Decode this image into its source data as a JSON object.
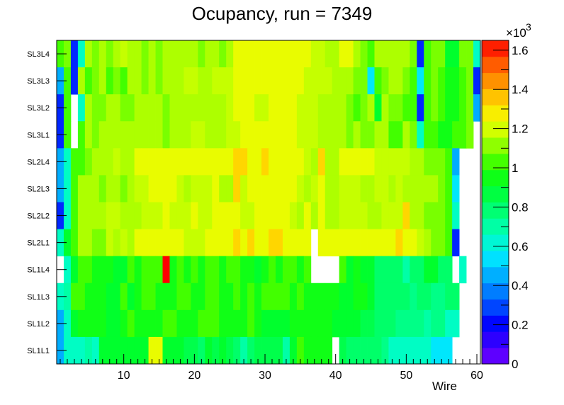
{
  "title": "Ocupancy, run = 7349",
  "chart_data": {
    "type": "heatmap",
    "title": "Ocupancy, run = 7349",
    "xlabel": "Wire",
    "ylabel": "",
    "x_ticks": [
      "10",
      "20",
      "30",
      "40",
      "50",
      "60"
    ],
    "x_range": [
      0.5,
      60.5
    ],
    "rows": [
      "SL3L4",
      "SL3L3",
      "SL3L2",
      "SL3L1",
      "SL2L4",
      "SL2L3",
      "SL2L2",
      "SL2L1",
      "SL1L4",
      "SL1L3",
      "SL1L2",
      "SL1L1"
    ],
    "colorbar": {
      "multiplier": "×10",
      "exponent": "3",
      "ticks": [
        "0",
        "0.2",
        "0.4",
        "0.6",
        "0.8",
        "1",
        "1.2",
        "1.4",
        "1.6"
      ],
      "range": [
        0,
        1650
      ]
    },
    "values_scale": "counts",
    "row_values": {
      "SL3L4": [
        1030,
        1090,
        250,
        650,
        1150,
        1090,
        1150,
        1090,
        1150,
        1180,
        1150,
        1150,
        1090,
        1150,
        1090,
        1150,
        1150,
        1150,
        1150,
        1150,
        1090,
        1150,
        1150,
        1090,
        1150,
        1230,
        1230,
        1230,
        1230,
        1230,
        1230,
        1230,
        1230,
        1230,
        1230,
        1230,
        1180,
        1180,
        1150,
        1150,
        1230,
        1230,
        1150,
        1090,
        1030,
        1150,
        1150,
        1150,
        1150,
        1150,
        1090,
        250,
        1030,
        1090,
        1090,
        900,
        900,
        1090,
        1090,
        650
      ],
      "SL3L3": [
        450,
        1030,
        250,
        1150,
        1030,
        1090,
        1150,
        1030,
        1090,
        1030,
        1150,
        1150,
        1090,
        1150,
        1090,
        1150,
        1150,
        1150,
        1180,
        1180,
        1150,
        1150,
        1180,
        1180,
        1180,
        1230,
        1230,
        1230,
        1230,
        1230,
        1230,
        1230,
        1230,
        1230,
        1230,
        1180,
        1180,
        1180,
        1180,
        1150,
        1150,
        1150,
        1090,
        1090,
        550,
        1030,
        1090,
        1150,
        1150,
        1090,
        1030,
        550,
        1030,
        1090,
        1030,
        950,
        950,
        1030,
        1090,
        250
      ],
      "SL3L2": [
        250,
        1030,
        null,
        650,
        1150,
        1090,
        1090,
        1150,
        1150,
        1090,
        1090,
        1150,
        1150,
        1150,
        1150,
        1090,
        1150,
        1150,
        1150,
        1150,
        1150,
        1150,
        1150,
        1150,
        1180,
        1230,
        1230,
        1230,
        1180,
        1180,
        1230,
        1230,
        1230,
        1230,
        1180,
        1180,
        1180,
        1150,
        1150,
        1150,
        1150,
        1090,
        1030,
        1090,
        1150,
        900,
        1150,
        1090,
        1090,
        1030,
        1030,
        250,
        1030,
        1090,
        1030,
        950,
        950,
        1030,
        1090,
        450
      ],
      "SL3L1": [
        250,
        1030,
        null,
        1030,
        1150,
        1090,
        1150,
        1150,
        1150,
        1150,
        1150,
        1150,
        1150,
        1150,
        1150,
        1090,
        1150,
        1150,
        1150,
        1180,
        1180,
        1150,
        1150,
        1150,
        1180,
        1180,
        1230,
        1230,
        1230,
        1230,
        1230,
        1230,
        1230,
        1230,
        1180,
        1180,
        1180,
        1150,
        1150,
        1150,
        1150,
        1090,
        1150,
        1090,
        1090,
        1150,
        1150,
        1030,
        1030,
        1150,
        1090,
        650,
        1030,
        1030,
        950,
        950,
        1030,
        1030,
        1090,
        null
      ],
      "SL2L4": [
        450,
        650,
        1030,
        1030,
        1090,
        1150,
        1150,
        1150,
        1180,
        1150,
        1150,
        1230,
        1230,
        1230,
        1230,
        1230,
        1230,
        1230,
        1230,
        1230,
        1230,
        1230,
        1230,
        1230,
        1230,
        1330,
        1330,
        1230,
        1230,
        1330,
        1230,
        1230,
        1230,
        1230,
        1230,
        1180,
        1150,
        1330,
        1150,
        1150,
        1230,
        1230,
        1230,
        1230,
        1230,
        1180,
        1180,
        1180,
        1180,
        1180,
        1150,
        1150,
        1090,
        1090,
        1090,
        1030,
        450,
        null,
        null,
        null
      ],
      "SL2L3": [
        450,
        650,
        1030,
        1150,
        1150,
        1150,
        1090,
        1150,
        1150,
        1090,
        1150,
        1180,
        1180,
        1230,
        1230,
        1230,
        1230,
        1180,
        1150,
        1180,
        1180,
        1180,
        1230,
        1150,
        1150,
        1330,
        1180,
        1230,
        1230,
        1230,
        1230,
        1230,
        1230,
        1230,
        1180,
        1150,
        1180,
        1230,
        1150,
        1150,
        1180,
        1180,
        1180,
        1150,
        1150,
        1180,
        1180,
        1150,
        1180,
        1150,
        1150,
        1150,
        1150,
        1150,
        1090,
        1030,
        550,
        null,
        null,
        null
      ],
      "SL2L2": [
        250,
        650,
        1030,
        1150,
        1150,
        1150,
        1150,
        1180,
        1180,
        1150,
        1150,
        1150,
        1180,
        1180,
        1180,
        1230,
        1180,
        1180,
        1180,
        1230,
        1180,
        1180,
        1230,
        1230,
        1230,
        1230,
        1180,
        1180,
        1230,
        1230,
        1230,
        1230,
        1230,
        1180,
        1150,
        1230,
        1150,
        1230,
        1150,
        1150,
        1180,
        1180,
        1180,
        1180,
        1150,
        1150,
        1180,
        1180,
        1180,
        1330,
        1150,
        1150,
        1090,
        1090,
        1090,
        1030,
        650,
        null,
        null,
        null
      ],
      "SL2L1": [
        650,
        900,
        1030,
        1150,
        1150,
        1090,
        1090,
        1180,
        1150,
        1180,
        1150,
        1230,
        1230,
        1230,
        1230,
        1230,
        1230,
        1230,
        1180,
        1180,
        1180,
        1230,
        1230,
        1230,
        1230,
        1330,
        1230,
        1330,
        1230,
        1230,
        1330,
        1330,
        1230,
        1230,
        1230,
        1230,
        null,
        1230,
        1230,
        1230,
        1230,
        1230,
        1230,
        1230,
        1230,
        1230,
        1230,
        1230,
        1330,
        1230,
        1230,
        1180,
        1150,
        1090,
        1090,
        1030,
        250,
        null,
        null,
        null
      ],
      "SL1L4": [
        null,
        650,
        900,
        1030,
        1030,
        950,
        950,
        950,
        900,
        900,
        1030,
        950,
        1030,
        1030,
        1030,
        1650,
        950,
        1030,
        950,
        1030,
        950,
        1030,
        1030,
        950,
        1030,
        1030,
        950,
        950,
        900,
        950,
        1030,
        950,
        1030,
        1030,
        950,
        1030,
        null,
        null,
        null,
        null,
        1030,
        900,
        950,
        900,
        900,
        800,
        800,
        800,
        800,
        700,
        800,
        800,
        900,
        900,
        800,
        800,
        null,
        650,
        null,
        null
      ],
      "SL1L3": [
        650,
        700,
        1030,
        1030,
        950,
        950,
        950,
        900,
        900,
        1030,
        900,
        950,
        1030,
        1030,
        950,
        950,
        950,
        1030,
        1030,
        950,
        950,
        1030,
        1030,
        950,
        950,
        1030,
        950,
        1030,
        950,
        1030,
        1030,
        1030,
        1030,
        950,
        1030,
        950,
        950,
        950,
        950,
        950,
        900,
        900,
        950,
        950,
        900,
        800,
        800,
        800,
        800,
        800,
        750,
        800,
        800,
        750,
        750,
        800,
        800,
        null,
        null,
        null
      ],
      "SL1L2": [
        450,
        650,
        900,
        950,
        950,
        950,
        950,
        900,
        900,
        950,
        1030,
        950,
        950,
        950,
        950,
        1030,
        1030,
        950,
        950,
        950,
        1030,
        1030,
        1030,
        950,
        950,
        950,
        950,
        1030,
        950,
        900,
        900,
        900,
        900,
        950,
        950,
        950,
        950,
        950,
        950,
        900,
        900,
        900,
        900,
        850,
        850,
        800,
        800,
        800,
        750,
        750,
        750,
        750,
        700,
        750,
        750,
        650,
        650,
        null,
        null,
        null
      ],
      "SL1L1": [
        450,
        650,
        650,
        650,
        700,
        650,
        900,
        900,
        900,
        900,
        900,
        900,
        900,
        1230,
        1230,
        900,
        900,
        900,
        850,
        850,
        800,
        900,
        850,
        900,
        850,
        800,
        700,
        800,
        850,
        850,
        850,
        850,
        700,
        900,
        1030,
        950,
        950,
        950,
        950,
        null,
        850,
        800,
        800,
        800,
        800,
        800,
        750,
        650,
        650,
        650,
        650,
        650,
        650,
        550,
        550,
        550,
        null,
        null,
        null,
        null
      ]
    }
  }
}
